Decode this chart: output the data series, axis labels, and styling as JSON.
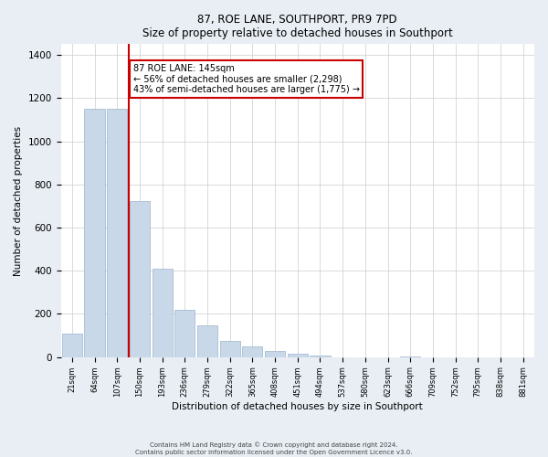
{
  "title": "87, ROE LANE, SOUTHPORT, PR9 7PD",
  "subtitle": "Size of property relative to detached houses in Southport",
  "xlabel": "Distribution of detached houses by size in Southport",
  "ylabel": "Number of detached properties",
  "categories": [
    "21sqm",
    "64sqm",
    "107sqm",
    "150sqm",
    "193sqm",
    "236sqm",
    "279sqm",
    "322sqm",
    "365sqm",
    "408sqm",
    "451sqm",
    "494sqm",
    "537sqm",
    "580sqm",
    "623sqm",
    "666sqm",
    "709sqm",
    "752sqm",
    "795sqm",
    "838sqm",
    "881sqm"
  ],
  "values": [
    110,
    1150,
    1150,
    725,
    410,
    220,
    148,
    73,
    50,
    28,
    15,
    8,
    0,
    0,
    0,
    5,
    0,
    0,
    0,
    0,
    0
  ],
  "bar_color": "#c8d8e8",
  "bar_edge_color": "#9ab4cc",
  "annotation_title": "87 ROE LANE: 145sqm",
  "annotation_line1": "← 56% of detached houses are smaller (2,298)",
  "annotation_line2": "43% of semi-detached houses are larger (1,775) →",
  "annotation_box_color": "#ffffff",
  "annotation_box_edge_color": "#cc0000",
  "highlight_line_color": "#cc0000",
  "footer1": "Contains HM Land Registry data © Crown copyright and database right 2024.",
  "footer2": "Contains public sector information licensed under the Open Government Licence v3.0.",
  "ylim": [
    0,
    1450
  ],
  "yticks": [
    0,
    200,
    400,
    600,
    800,
    1000,
    1200,
    1400
  ],
  "background_color": "#e8eef4",
  "plot_background_color": "#ffffff",
  "grid_color": "#cccccc"
}
